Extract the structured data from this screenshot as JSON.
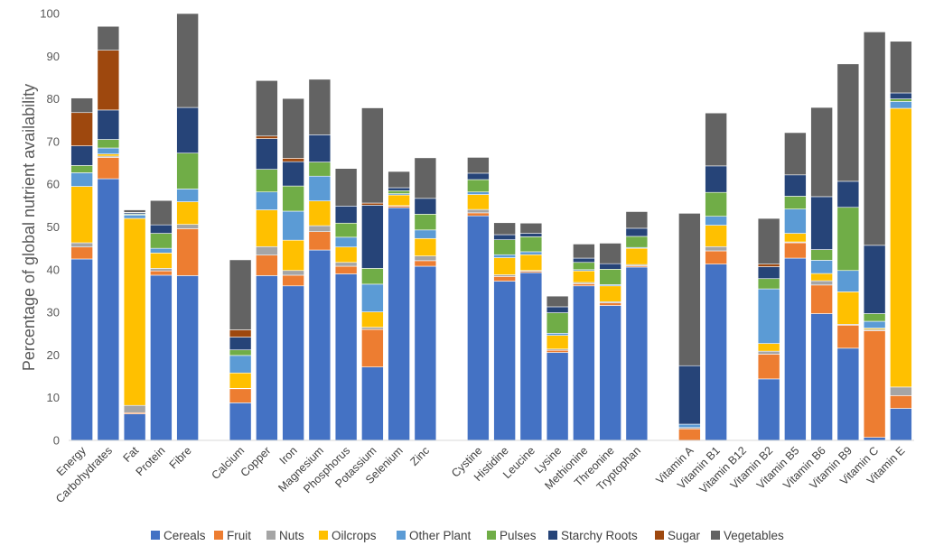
{
  "chart_data": {
    "type": "bar",
    "stacked": true,
    "title": "",
    "xlabel": "",
    "ylabel": "Percentage of global nutrient availability",
    "ylim": [
      0,
      100
    ],
    "yticks": [
      0,
      10,
      20,
      30,
      40,
      50,
      60,
      70,
      80,
      90,
      100
    ],
    "grid": false,
    "legend_position": "bottom",
    "categories": [
      "Energy",
      "Carbohydrates",
      "Fat",
      "Protein",
      "Fibre",
      "",
      "Calcium",
      "Copper",
      "Iron",
      "Magnesium",
      "Phosphorus",
      "Potassium",
      "Selenium",
      "Zinc",
      "",
      "Cystine",
      "Histidine",
      "Leucine",
      "Lysine",
      "Methionine",
      "Threonine",
      "Tryptophan",
      "",
      "Vitamin A",
      "Vitamin B1",
      "Vitamin B12",
      "Vitamin B2",
      "Vitamin B5",
      "Vitamin B6",
      "Vitamin B9",
      "Vitamin C",
      "Vitamin E"
    ],
    "series": [
      {
        "name": "Cereals",
        "color": "#4472C4",
        "values": [
          42.5,
          61.3,
          6.2,
          38.7,
          38.6,
          0,
          8.8,
          38.6,
          36.2,
          44.6,
          39.0,
          17.2,
          54.5,
          40.8,
          0,
          52.6,
          37.3,
          39.3,
          20.6,
          36.2,
          31.6,
          40.6,
          0,
          0,
          41.3,
          0,
          14.4,
          42.7,
          29.7,
          21.6,
          0.7,
          7.5
        ]
      },
      {
        "name": "Fruit",
        "color": "#ED7D31",
        "values": [
          2.8,
          5.0,
          0.3,
          1.0,
          11.0,
          0,
          3.3,
          4.8,
          2.5,
          4.3,
          1.8,
          8.8,
          0.4,
          1.3,
          0,
          0.7,
          1.1,
          0.3,
          0.5,
          0.5,
          0.6,
          0.3,
          0,
          2.7,
          3.1,
          0,
          5.8,
          3.6,
          6.7,
          5.4,
          25.0,
          3.0
        ]
      },
      {
        "name": "Nuts",
        "color": "#A5A5A5",
        "values": [
          1.0,
          0.3,
          1.7,
          0.6,
          1.0,
          0,
          0.1,
          2.0,
          1.1,
          1.4,
          0.9,
          0.5,
          0.1,
          1.1,
          0,
          0.8,
          0.4,
          0.2,
          0.3,
          0.3,
          0.3,
          0.3,
          0,
          0.3,
          1.0,
          0,
          0.7,
          0.2,
          1.0,
          0.2,
          0.3,
          2.0
        ]
      },
      {
        "name": "Oilcrops",
        "color": "#FFC000",
        "values": [
          13.2,
          0.5,
          43.8,
          3.6,
          5.3,
          0,
          3.6,
          8.6,
          7.1,
          5.8,
          3.6,
          3.6,
          2.5,
          4.1,
          0,
          3.5,
          4.0,
          3.7,
          3.2,
          2.7,
          3.7,
          3.8,
          0,
          0,
          5.0,
          0,
          1.8,
          2.0,
          1.7,
          7.6,
          0.3,
          65.3
        ]
      },
      {
        "name": "Other Plant",
        "color": "#5B9BD5",
        "values": [
          3.2,
          1.4,
          0.8,
          1.1,
          3.0,
          0,
          4.1,
          4.2,
          6.8,
          5.8,
          2.3,
          6.5,
          0.3,
          2.0,
          0,
          0.6,
          0.7,
          0.7,
          0.5,
          0.3,
          0.3,
          0.2,
          0,
          0.8,
          2.1,
          0,
          12.8,
          5.7,
          3.1,
          5.0,
          1.6,
          1.6
        ]
      },
      {
        "name": "Pulses",
        "color": "#70AD47",
        "values": [
          1.7,
          2.0,
          0.2,
          3.5,
          8.4,
          0,
          1.3,
          5.3,
          5.9,
          3.3,
          3.3,
          3.7,
          0.7,
          3.7,
          0,
          2.9,
          3.5,
          3.5,
          4.8,
          1.7,
          3.6,
          2.6,
          0,
          0,
          5.6,
          0,
          2.4,
          3.0,
          2.5,
          14.8,
          1.8,
          0.6
        ]
      },
      {
        "name": "Starchy Roots",
        "color": "#264478",
        "values": [
          4.6,
          6.9,
          0.3,
          2.0,
          10.7,
          0,
          3.0,
          7.2,
          5.7,
          6.4,
          4.0,
          14.8,
          0.7,
          3.7,
          0,
          1.5,
          1.2,
          0.8,
          1.4,
          1.0,
          1.3,
          1.9,
          0,
          13.7,
          6.2,
          0,
          2.8,
          5.0,
          12.4,
          6.1,
          16.0,
          1.4
        ]
      },
      {
        "name": "Sugar",
        "color": "#9E480E",
        "values": [
          7.8,
          14.0,
          0.1,
          0.0,
          0.0,
          0,
          1.7,
          0.6,
          0.8,
          0.0,
          0.0,
          0.5,
          0.0,
          0.0,
          0,
          0.0,
          0.0,
          0.0,
          0.0,
          0.0,
          0.0,
          0.0,
          0,
          0.0,
          0.0,
          0,
          0.6,
          0.0,
          0.0,
          0.0,
          0.0,
          0.0
        ]
      },
      {
        "name": "Vegetables",
        "color": "#636363",
        "values": [
          3.4,
          5.6,
          0.6,
          5.7,
          22.0,
          0,
          16.4,
          13.0,
          14.0,
          13.0,
          8.8,
          22.3,
          3.8,
          9.5,
          0,
          3.7,
          2.8,
          2.4,
          2.5,
          3.3,
          4.8,
          3.9,
          0,
          35.7,
          12.4,
          0,
          10.7,
          9.9,
          20.9,
          27.5,
          50.0,
          12.1
        ]
      }
    ]
  }
}
